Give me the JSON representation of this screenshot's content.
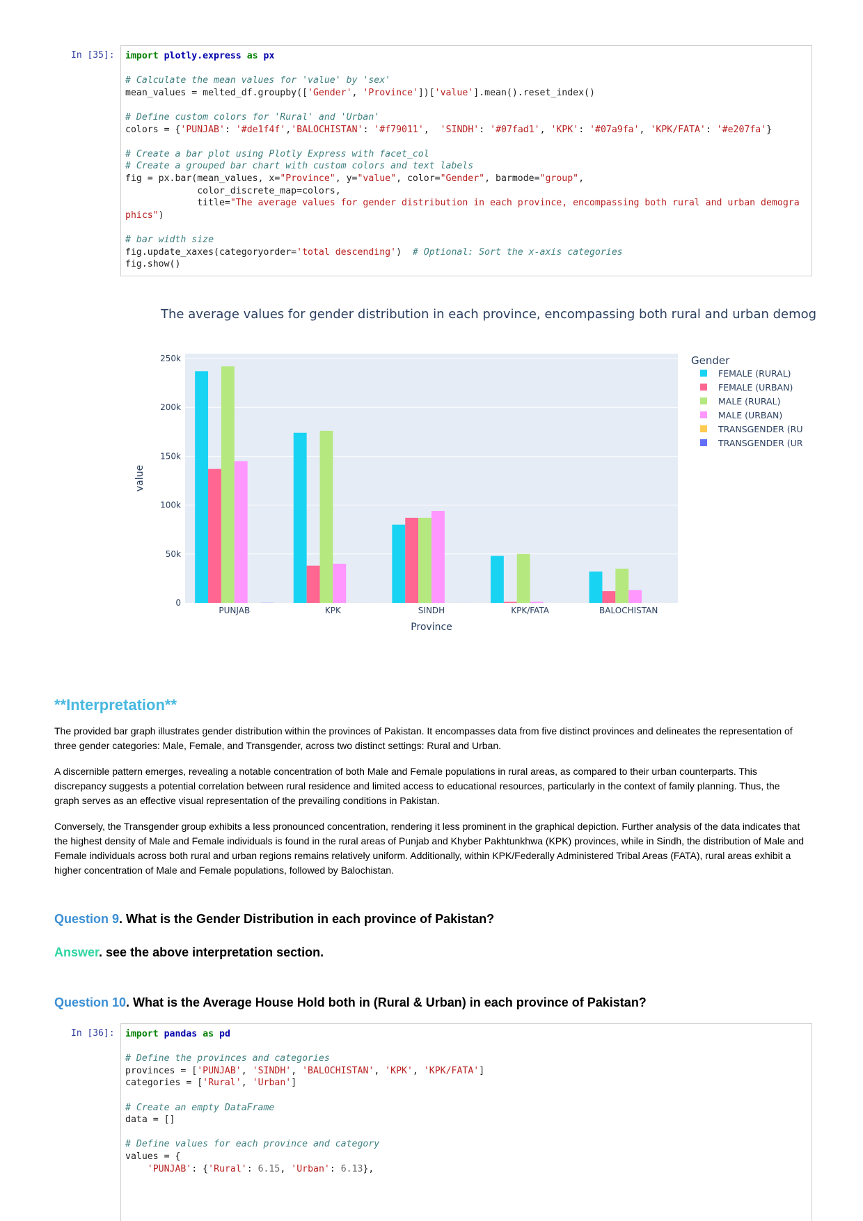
{
  "cell35": {
    "prompt": "In [35]:",
    "lines": [
      [
        [
          "kw",
          "import"
        ],
        [
          "",
          " "
        ],
        [
          "nm",
          "plotly.express"
        ],
        [
          "",
          " "
        ],
        [
          "kw",
          "as"
        ],
        [
          "",
          " "
        ],
        [
          "nm",
          "px"
        ]
      ],
      [],
      [
        [
          "cm",
          "# Calculate the mean values for 'value' by 'sex'"
        ]
      ],
      [
        [
          "",
          "mean_values = melted_df.groupby(["
        ],
        [
          "st",
          "'Gender'"
        ],
        [
          "",
          ", "
        ],
        [
          "st",
          "'Province'"
        ],
        [
          "",
          "])["
        ],
        [
          "st",
          "'value'"
        ],
        [
          "",
          "].mean().reset_index()"
        ]
      ],
      [],
      [
        [
          "cm",
          "# Define custom colors for 'Rural' and 'Urban'"
        ]
      ],
      [
        [
          "",
          "colors = {"
        ],
        [
          "st",
          "'PUNJAB'"
        ],
        [
          "",
          ": "
        ],
        [
          "st",
          "'#de1f4f'"
        ],
        [
          "",
          ","
        ],
        [
          "st",
          "'BALOCHISTAN'"
        ],
        [
          "",
          ": "
        ],
        [
          "st",
          "'#f79011'"
        ],
        [
          "",
          ",  "
        ],
        [
          "st",
          "'SINDH'"
        ],
        [
          "",
          ": "
        ],
        [
          "st",
          "'#07fad1'"
        ],
        [
          "",
          ", "
        ],
        [
          "st",
          "'KPK'"
        ],
        [
          "",
          ": "
        ],
        [
          "st",
          "'#07a9fa'"
        ],
        [
          "",
          ", "
        ],
        [
          "st",
          "'KPK/FATA'"
        ],
        [
          "",
          ": "
        ],
        [
          "st",
          "'#e207fa'"
        ],
        [
          "",
          "}"
        ]
      ],
      [],
      [
        [
          "cm",
          "# Create a bar plot using Plotly Express with facet_col"
        ]
      ],
      [
        [
          "cm",
          "# Create a grouped bar chart with custom colors and text labels"
        ]
      ],
      [
        [
          "",
          "fig = px.bar(mean_values, x="
        ],
        [
          "st",
          "\"Province\""
        ],
        [
          "",
          ", y="
        ],
        [
          "st",
          "\"value\""
        ],
        [
          "",
          ", color="
        ],
        [
          "st",
          "\"Gender\""
        ],
        [
          "",
          ", barmode="
        ],
        [
          "st",
          "\"group\""
        ],
        [
          "",
          ","
        ]
      ],
      [
        [
          "",
          "             color_discrete_map=colors,"
        ]
      ],
      [
        [
          "",
          "             title="
        ],
        [
          "st",
          "\"The average values for gender distribution in each province, encompassing both rural and urban demogra"
        ]
      ],
      [
        [
          "st",
          "phics\""
        ],
        [
          "",
          ")"
        ]
      ],
      [],
      [
        [
          "cm",
          "# bar width size"
        ]
      ],
      [
        [
          "",
          "fig.update_xaxes(categoryorder="
        ],
        [
          "st",
          "'total descending'"
        ],
        [
          "",
          ")  "
        ],
        [
          "cm",
          "# Optional: Sort the x-axis categories"
        ]
      ],
      [
        [
          "",
          "fig.show()"
        ]
      ]
    ]
  },
  "cell36": {
    "prompt": "In [36]:",
    "lines": [
      [
        [
          "kw",
          "import"
        ],
        [
          "",
          " "
        ],
        [
          "nm",
          "pandas"
        ],
        [
          "",
          " "
        ],
        [
          "kw",
          "as"
        ],
        [
          "",
          " "
        ],
        [
          "nm",
          "pd"
        ]
      ],
      [],
      [
        [
          "cm",
          "# Define the provinces and categories"
        ]
      ],
      [
        [
          "",
          "provinces = ["
        ],
        [
          "st",
          "'PUNJAB'"
        ],
        [
          "",
          ", "
        ],
        [
          "st",
          "'SINDH'"
        ],
        [
          "",
          ", "
        ],
        [
          "st",
          "'BALOCHISTAN'"
        ],
        [
          "",
          ", "
        ],
        [
          "st",
          "'KPK'"
        ],
        [
          "",
          ", "
        ],
        [
          "st",
          "'KPK/FATA'"
        ],
        [
          "",
          "]"
        ]
      ],
      [
        [
          "",
          "categories = ["
        ],
        [
          "st",
          "'Rural'"
        ],
        [
          "",
          ", "
        ],
        [
          "st",
          "'Urban'"
        ],
        [
          "",
          "]"
        ]
      ],
      [],
      [
        [
          "cm",
          "# Create an empty DataFrame"
        ]
      ],
      [
        [
          "",
          "data = []"
        ]
      ],
      [],
      [
        [
          "cm",
          "# Define values for each province and category"
        ]
      ],
      [
        [
          "",
          "values = {"
        ]
      ],
      [
        [
          "",
          "    "
        ],
        [
          "st",
          "'PUNJAB'"
        ],
        [
          "",
          ": {"
        ],
        [
          "st",
          "'Rural'"
        ],
        [
          "",
          ": "
        ],
        [
          "nu",
          "6.15"
        ],
        [
          "",
          ", "
        ],
        [
          "st",
          "'Urban'"
        ],
        [
          "",
          ": "
        ],
        [
          "nu",
          "6.13"
        ],
        [
          "",
          "},"
        ]
      ]
    ]
  },
  "chart_data": {
    "type": "bar",
    "title": "The average values for gender distribution in each province, encompassing both rural and urban demog",
    "xlabel": "Province",
    "ylabel": "value",
    "ylim": [
      0,
      255000
    ],
    "yticks": [
      0,
      50000,
      100000,
      150000,
      200000,
      250000
    ],
    "ytick_labels": [
      "0",
      "50k",
      "100k",
      "150k",
      "200k",
      "250k"
    ],
    "categories": [
      "PUNJAB",
      "KPK",
      "SINDH",
      "KPK/FATA",
      "BALOCHISTAN"
    ],
    "legend_title": "Gender",
    "legend_position": "right",
    "grid": true,
    "series": [
      {
        "name": "FEMALE (RURAL)",
        "color": "#19d3f3",
        "values": [
          237000,
          174000,
          80000,
          48000,
          32000
        ]
      },
      {
        "name": "FEMALE (URBAN)",
        "color": "#ff6692",
        "values": [
          137000,
          38000,
          87000,
          1000,
          12000
        ]
      },
      {
        "name": "MALE (RURAL)",
        "color": "#b6e880",
        "values": [
          242000,
          176000,
          87000,
          50000,
          35000
        ]
      },
      {
        "name": "MALE (URBAN)",
        "color": "#ff97ff",
        "values": [
          145000,
          40000,
          94000,
          1000,
          13000
        ]
      },
      {
        "name": "TRANSGENDER (RU",
        "color": "#fecb52",
        "values": [
          60,
          40,
          30,
          5,
          5
        ]
      },
      {
        "name": "TRANSGENDER (UR",
        "color": "#636efa",
        "values": [
          120,
          20,
          40,
          2,
          3
        ]
      }
    ]
  },
  "markdown": {
    "heading": "**Interpretation**",
    "p1": "The provided bar graph illustrates gender distribution within the provinces of Pakistan. It encompasses data from five distinct provinces and delineates the representation of three gender categories: Male, Female, and Transgender, across two distinct settings: Rural and Urban.",
    "p2": "A discernible pattern emerges, revealing a notable concentration of both Male and Female populations in rural areas, as compared to their urban counterparts. This discrepancy suggests a potential correlation between rural residence and limited access to educational resources, particularly in the context of family planning. Thus, the graph serves as an effective visual representation of the prevailing conditions in Pakistan.",
    "p3": "Conversely, the Transgender group exhibits a less pronounced concentration, rendering it less prominent in the graphical depiction. Further analysis of the data indicates that the highest density of Male and Female individuals is found in the rural areas of Punjab and Khyber Pakhtunkhwa (KPK) provinces, while in Sindh, the distribution of Male and Female individuals across both rural and urban regions remains relatively uniform. Additionally, within KPK/Federally Administered Tribal Areas (FATA), rural areas exhibit a higher concentration of Male and Female populations, followed by Balochistan.",
    "q9_label": "Question 9",
    "q9_text": ". What is the Gender Distribution in each province of Pakistan?",
    "a9_label": "Answer",
    "a9_text": ". see the above interpretation section.",
    "q10_label": "Question 10",
    "q10_text": ". What is the Average House Hold both in (Rural & Urban) in each province of Pakistan?"
  }
}
